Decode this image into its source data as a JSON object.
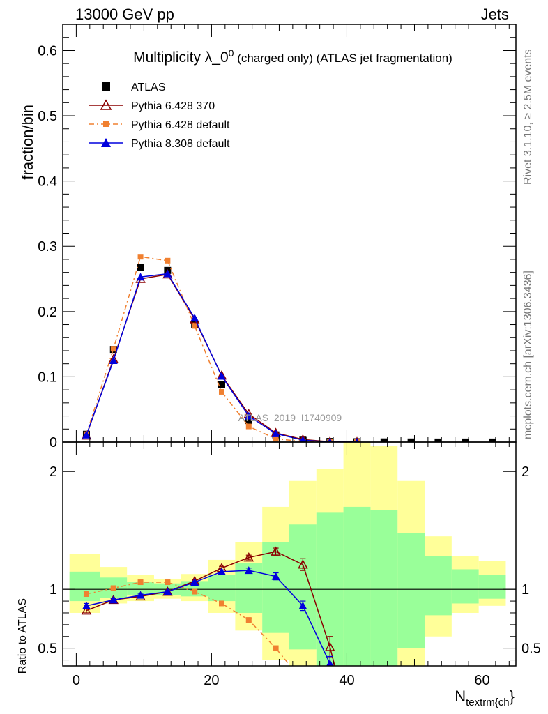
{
  "header": {
    "left": "13000 GeV pp",
    "right": "Jets"
  },
  "side_labels": {
    "top": "Rivet 3.1.10, ≥ 2.5M events",
    "bottom": "mcplots.cern.ch [arXiv:1306.3436]"
  },
  "watermark": "ATLAS_2019_I1740909",
  "chart_data": [
    {
      "type": "line",
      "title_main": "Multiplicity λ_0",
      "title_sup": "0",
      "title_suffix": " (charged only) (ATLAS jet fragmentation)",
      "ylabel": "fraction/bin",
      "xlim": [
        -2,
        65
      ],
      "ylim": [
        0,
        0.64
      ],
      "y_ticks": [
        0,
        0.1,
        0.2,
        0.3,
        0.4,
        0.5,
        0.6
      ],
      "y_tick_labels": [
        "0",
        "0.1",
        "0.2",
        "0.3",
        "0.4",
        "0.5",
        "0.6"
      ],
      "legend_position": "top-left",
      "series": [
        {
          "name": "ATLAS",
          "color": "#000000",
          "marker": "square",
          "x": [
            1.5,
            5.5,
            9.5,
            13.5,
            17.5,
            21.5,
            25.5,
            29.5,
            33.5,
            37.5,
            41.5,
            45.5,
            49.5,
            53.5,
            57.5,
            61.5
          ],
          "y": [
            0.012,
            0.142,
            0.268,
            0.263,
            0.18,
            0.088,
            0.033,
            0.011,
            0.003,
            0.001,
            0.0005,
            0.0003,
            0.0002,
            0.0001,
            0.0001,
            0.0001
          ]
        },
        {
          "name": "Pythia 6.428 370",
          "color": "#8b0000",
          "marker": "open-triangle",
          "dash": "",
          "x": [
            1.5,
            5.5,
            9.5,
            13.5,
            17.5,
            21.5,
            25.5,
            29.5,
            33.5,
            37.5,
            41.5
          ],
          "y": [
            0.01,
            0.127,
            0.25,
            0.257,
            0.188,
            0.102,
            0.043,
            0.014,
            0.004,
            0.0005,
            0.0001
          ]
        },
        {
          "name": "Pythia 6.428 default",
          "color": "#f08030",
          "marker": "square",
          "dash": "7,4,2,4",
          "x": [
            1.5,
            5.5,
            9.5,
            13.5,
            17.5,
            21.5,
            25.5,
            29.5,
            33.5,
            37.5,
            41.5
          ],
          "y": [
            0.012,
            0.143,
            0.284,
            0.278,
            0.178,
            0.077,
            0.024,
            0.005,
            0.001,
            0.0002,
            0.0001
          ]
        },
        {
          "name": "Pythia 8.308 default",
          "color": "#0000dd",
          "marker": "filled-triangle",
          "dash": "",
          "x": [
            1.5,
            5.5,
            9.5,
            13.5,
            17.5,
            21.5,
            25.5,
            29.5,
            33.5,
            37.5,
            41.5
          ],
          "y": [
            0.011,
            0.125,
            0.253,
            0.258,
            0.19,
            0.101,
            0.04,
            0.013,
            0.003,
            0.0003,
            0.0001
          ]
        }
      ]
    },
    {
      "type": "line",
      "ylabel": "Ratio to ATLAS",
      "xlabel_main": "N",
      "xlabel_sub": "textrm{ch",
      "xlabel_tail": "}",
      "xlim": [
        -2,
        65
      ],
      "ylim": [
        0.35,
        2.25
      ],
      "x_ticks": [
        0,
        20,
        40,
        60
      ],
      "x_tick_labels": [
        "0",
        "20",
        "40",
        "60"
      ],
      "y_ticks": [
        0.5,
        1,
        2
      ],
      "y_tick_labels": [
        "0.5",
        "1",
        "2"
      ],
      "bin_edges": [
        -1,
        3.5,
        7.5,
        11.5,
        15.5,
        19.5,
        23.5,
        27.5,
        31.5,
        35.5,
        39.5,
        43.5,
        47.5,
        51.5,
        55.5,
        59.5,
        63.5
      ],
      "band_outer": {
        "color": "#ffff99",
        "lo": [
          0.8,
          0.88,
          0.9,
          0.92,
          0.9,
          0.8,
          0.65,
          0.4,
          0.2,
          0.1,
          0.1,
          0.1,
          0.3,
          0.6,
          0.8,
          0.86
        ],
        "hi": [
          1.3,
          1.19,
          1.12,
          1.09,
          1.13,
          1.25,
          1.4,
          1.7,
          1.92,
          2.02,
          2.25,
          2.22,
          1.92,
          1.45,
          1.28,
          1.24
        ]
      },
      "band_inner": {
        "color": "#99ff99",
        "lo": [
          0.9,
          0.93,
          0.95,
          0.95,
          0.94,
          0.9,
          0.8,
          0.63,
          0.49,
          0.35,
          0.3,
          0.3,
          0.5,
          0.78,
          0.88,
          0.92
        ],
        "hi": [
          1.15,
          1.1,
          1.06,
          1.05,
          1.07,
          1.12,
          1.22,
          1.4,
          1.55,
          1.65,
          1.7,
          1.67,
          1.48,
          1.28,
          1.17,
          1.12
        ]
      },
      "series": [
        {
          "name": "Pythia 6.428 370",
          "color": "#8b0000",
          "marker": "open-triangle",
          "dash": "",
          "x": [
            1.5,
            5.5,
            9.5,
            13.5,
            17.5,
            21.5,
            25.5,
            29.5,
            33.5,
            37.5,
            38.3
          ],
          "y": [
            0.82,
            0.91,
            0.94,
            0.98,
            1.07,
            1.18,
            1.27,
            1.32,
            1.21,
            0.51,
            0.33
          ],
          "err": [
            0.02,
            0.01,
            0.01,
            0.01,
            0.01,
            0.015,
            0.02,
            0.03,
            0.05,
            0.09,
            0
          ]
        },
        {
          "name": "Pythia 6.428 default",
          "color": "#f08030",
          "marker": "square",
          "dash": "7,4,2,4",
          "x": [
            1.5,
            5.5,
            9.5,
            13.5,
            17.5,
            21.5,
            25.5,
            29.5,
            31.5
          ],
          "y": [
            0.96,
            1.01,
            1.06,
            1.06,
            0.98,
            0.88,
            0.74,
            0.5,
            0.36
          ],
          "err": [
            0.02,
            0.01,
            0.01,
            0.01,
            0.01,
            0.01,
            0.01,
            0.02,
            0
          ]
        },
        {
          "name": "Pythia 8.308 default",
          "color": "#0000dd",
          "marker": "filled-triangle",
          "dash": "",
          "x": [
            1.5,
            5.5,
            9.5,
            13.5,
            17.5,
            21.5,
            25.5,
            29.5,
            33.5,
            37.5,
            37.7
          ],
          "y": [
            0.86,
            0.91,
            0.95,
            0.98,
            1.06,
            1.15,
            1.16,
            1.11,
            0.86,
            0.37,
            0.33
          ],
          "err": [
            0.02,
            0.01,
            0.01,
            0.01,
            0.01,
            0.015,
            0.02,
            0.03,
            0.04,
            0.06,
            0
          ]
        }
      ]
    }
  ]
}
